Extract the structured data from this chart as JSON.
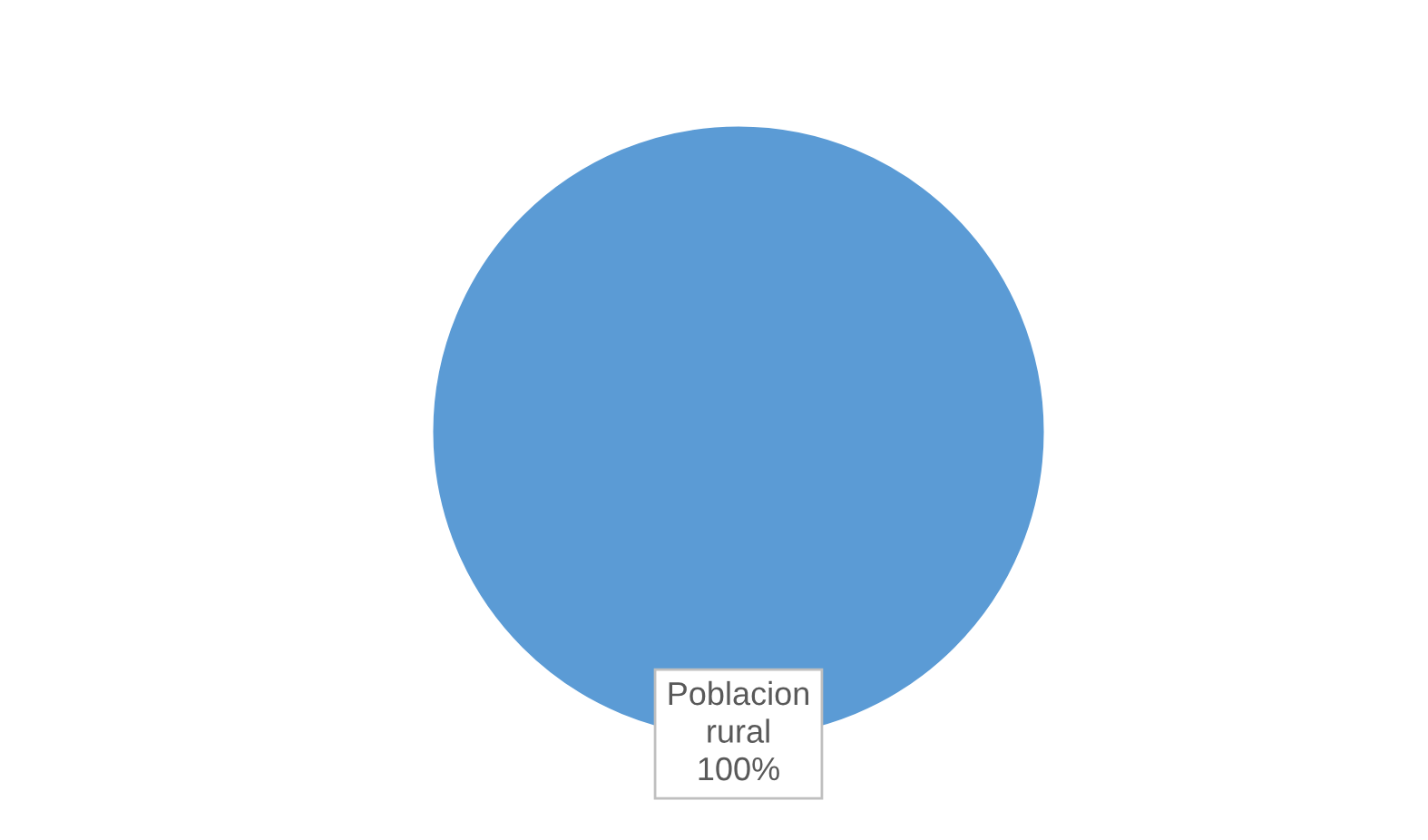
{
  "chart_data": {
    "type": "pie",
    "categories": [
      "Poblacion rural"
    ],
    "values": [
      100
    ],
    "colors": [
      "#5b9bd5"
    ],
    "value_labels": [
      "100%"
    ]
  }
}
